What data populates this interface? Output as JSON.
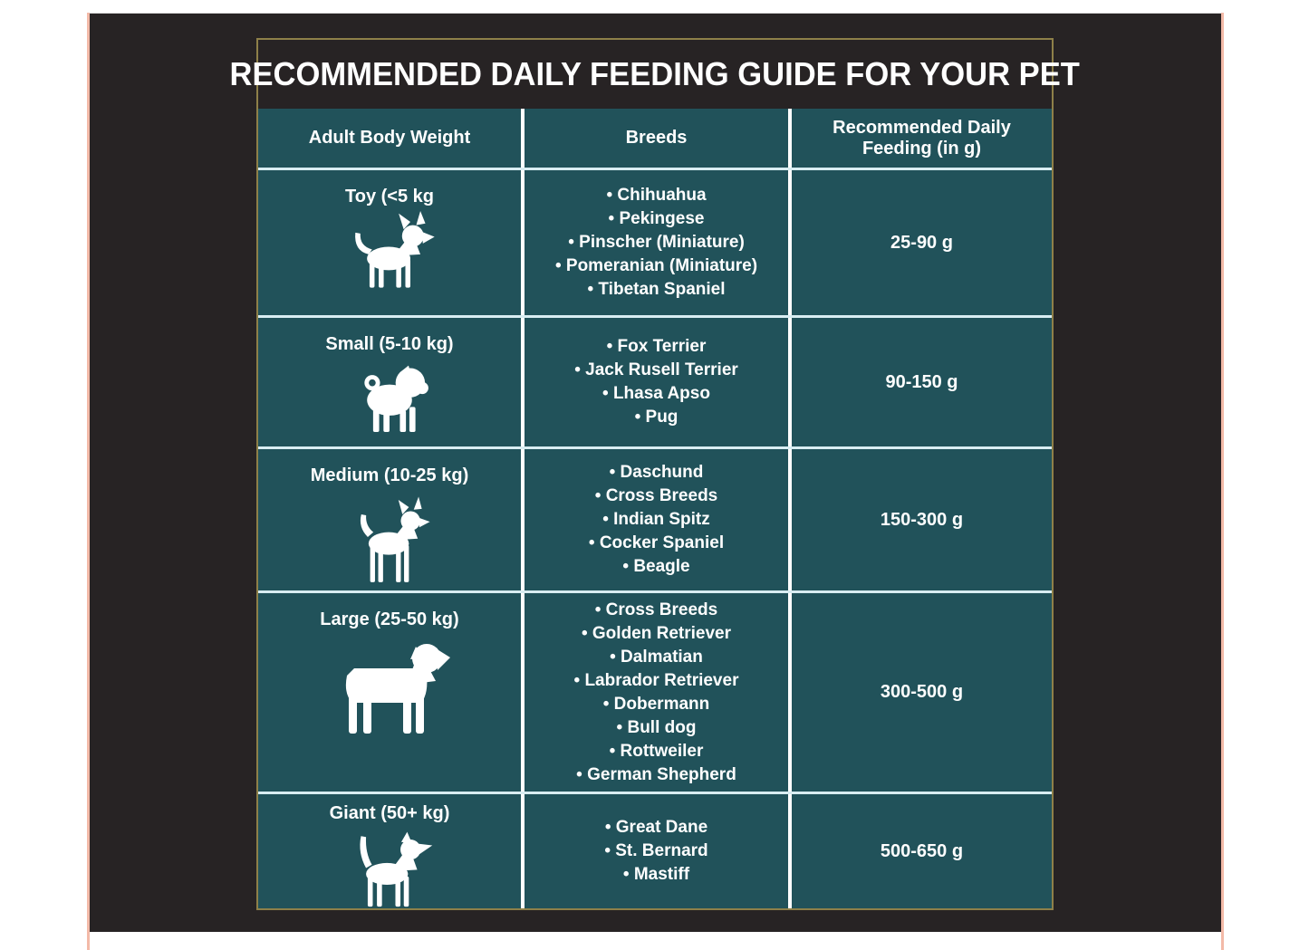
{
  "title": "RECOMMENDED DAILY FEEDING GUIDE FOR YOUR PET",
  "table": {
    "headers": [
      "Adult Body Weight",
      "Breeds",
      "Recommended Daily Feeding (in g)"
    ],
    "rows": [
      {
        "weight": "Toy (<5 kg",
        "icon": "chihuahua-silhouette",
        "breeds": [
          "Chihuahua",
          "Pekingese",
          "Pinscher (Miniature)",
          "Pomeranian (Miniature)",
          "Tibetan Spaniel"
        ],
        "feeding": "25-90 g"
      },
      {
        "weight": "Small (5-10 kg)",
        "icon": "pug-silhouette",
        "breeds": [
          "Fox Terrier",
          "Jack Rusell Terrier",
          "Lhasa Apso",
          "Pug"
        ],
        "feeding": "90-150 g"
      },
      {
        "weight": "Medium (10-25 kg)",
        "icon": "spitz-silhouette",
        "breeds": [
          "Daschund",
          "Cross Breeds",
          "Indian Spitz",
          "Cocker Spaniel",
          "Beagle"
        ],
        "feeding": "150-300 g"
      },
      {
        "weight": "Large (25-50 kg)",
        "icon": "rottweiler-silhouette",
        "breeds": [
          "Cross Breeds",
          "Golden Retriever",
          "Dalmatian",
          "Labrador Retriever",
          "Dobermann",
          "Bull dog",
          "Rottweiler",
          "German Shepherd"
        ],
        "feeding": "300-500 g"
      },
      {
        "weight": "Giant (50+ kg)",
        "icon": "terrier-silhouette",
        "breeds": [
          "Great Dane",
          "St. Bernard",
          "Mastiff"
        ],
        "feeding": "500-650 g"
      }
    ]
  },
  "colors": {
    "panel_background": "#272324",
    "cell_teal": "#21525a",
    "table_border_gold": "#8e8049",
    "row_divider": "#d9edf2",
    "column_divider": "#ffffff",
    "edge_accent_salmon": "#f3baa8",
    "text": "#ffffff"
  }
}
